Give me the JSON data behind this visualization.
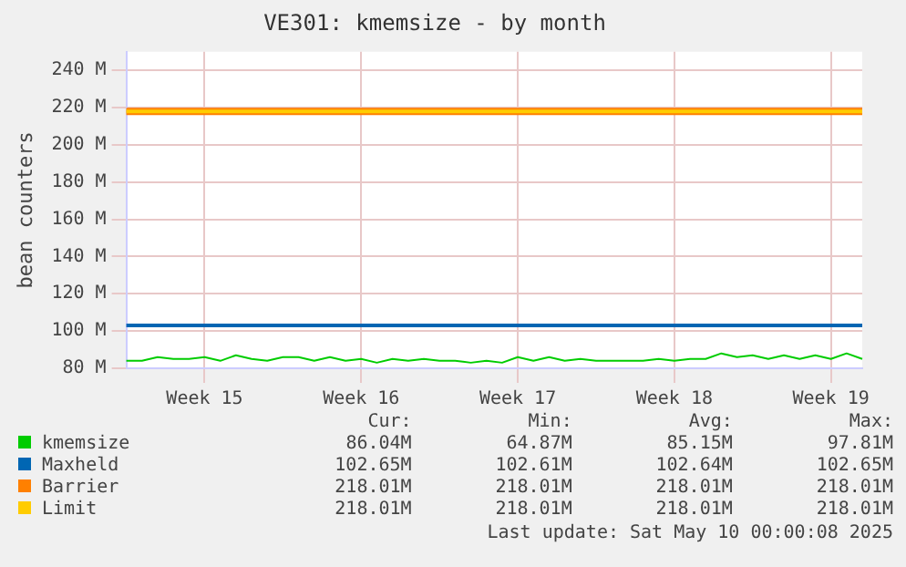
{
  "chart_data": {
    "type": "line",
    "title": "VE301: kmemsize - by month",
    "ylabel": "bean counters",
    "categories": [
      null,
      null,
      null,
      null,
      null,
      "Week 15",
      null,
      null,
      null,
      null,
      null,
      null,
      null,
      null,
      null,
      "Week 16",
      null,
      null,
      null,
      null,
      null,
      null,
      null,
      null,
      null,
      "Week 17",
      null,
      null,
      null,
      null,
      null,
      null,
      null,
      null,
      null,
      "Week 18",
      null,
      null,
      null,
      null,
      null,
      null,
      null,
      null,
      null,
      "Week 19",
      null,
      null
    ],
    "ylim": [
      80,
      250
    ],
    "yticks": [
      {
        "value": 80,
        "label": "80 M"
      },
      {
        "value": 100,
        "label": "100 M"
      },
      {
        "value": 120,
        "label": "120 M"
      },
      {
        "value": 140,
        "label": "140 M"
      },
      {
        "value": 160,
        "label": "160 M"
      },
      {
        "value": 180,
        "label": "180 M"
      },
      {
        "value": 200,
        "label": "200 M"
      },
      {
        "value": 220,
        "label": "220 M"
      },
      {
        "value": 240,
        "label": "240 M"
      }
    ],
    "grid": true,
    "legend": "bottom",
    "marker": "none",
    "series": [
      {
        "name": "kmemsize",
        "color": "#00cc00",
        "values": [
          84,
          84,
          86,
          85,
          85,
          86,
          84,
          87,
          85,
          84,
          86,
          86,
          84,
          86,
          84,
          85,
          83,
          85,
          84,
          85,
          84,
          84,
          83,
          84,
          83,
          86,
          84,
          86,
          84,
          85,
          84,
          84,
          84,
          84,
          85,
          84,
          85,
          85,
          88,
          86,
          87,
          85,
          87,
          85,
          87,
          85,
          88,
          85
        ]
      },
      {
        "name": "Maxheld",
        "color": "#0066b3",
        "values": [
          103,
          103,
          103,
          103,
          103,
          103,
          103,
          103,
          103,
          103,
          103,
          103,
          103,
          103,
          103,
          103,
          103,
          103,
          103,
          103,
          103,
          103,
          103,
          103,
          103,
          103,
          103,
          103,
          103,
          103,
          103,
          103,
          103,
          103,
          103,
          103,
          103,
          103,
          103,
          103,
          103,
          103,
          103,
          103,
          103,
          103,
          103,
          103
        ]
      },
      {
        "name": "Barrier",
        "color": "#ff8000",
        "values": [
          218,
          218,
          218,
          218,
          218,
          218,
          218,
          218,
          218,
          218,
          218,
          218,
          218,
          218,
          218,
          218,
          218,
          218,
          218,
          218,
          218,
          218,
          218,
          218,
          218,
          218,
          218,
          218,
          218,
          218,
          218,
          218,
          218,
          218,
          218,
          218,
          218,
          218,
          218,
          218,
          218,
          218,
          218,
          218,
          218,
          218,
          218,
          218
        ]
      },
      {
        "name": "Limit",
        "color": "#ffcc00",
        "values": [
          218,
          218,
          218,
          218,
          218,
          218,
          218,
          218,
          218,
          218,
          218,
          218,
          218,
          218,
          218,
          218,
          218,
          218,
          218,
          218,
          218,
          218,
          218,
          218,
          218,
          218,
          218,
          218,
          218,
          218,
          218,
          218,
          218,
          218,
          218,
          218,
          218,
          218,
          218,
          218,
          218,
          218,
          218,
          218,
          218,
          218,
          218,
          218
        ]
      }
    ],
    "annotations": [
      "Cur:",
      "Min:",
      "Avg:",
      "Max:",
      "86.04M",
      "64.87M",
      "85.15M",
      "97.81M",
      "102.65M",
      "102.61M",
      "102.64M",
      "102.65M",
      "218.01M",
      "218.01M",
      "218.01M",
      "218.01M",
      "218.01M",
      "218.01M",
      "218.01M",
      "218.01M",
      "Last update: Sat May 10 00:00:08 2025"
    ]
  }
}
